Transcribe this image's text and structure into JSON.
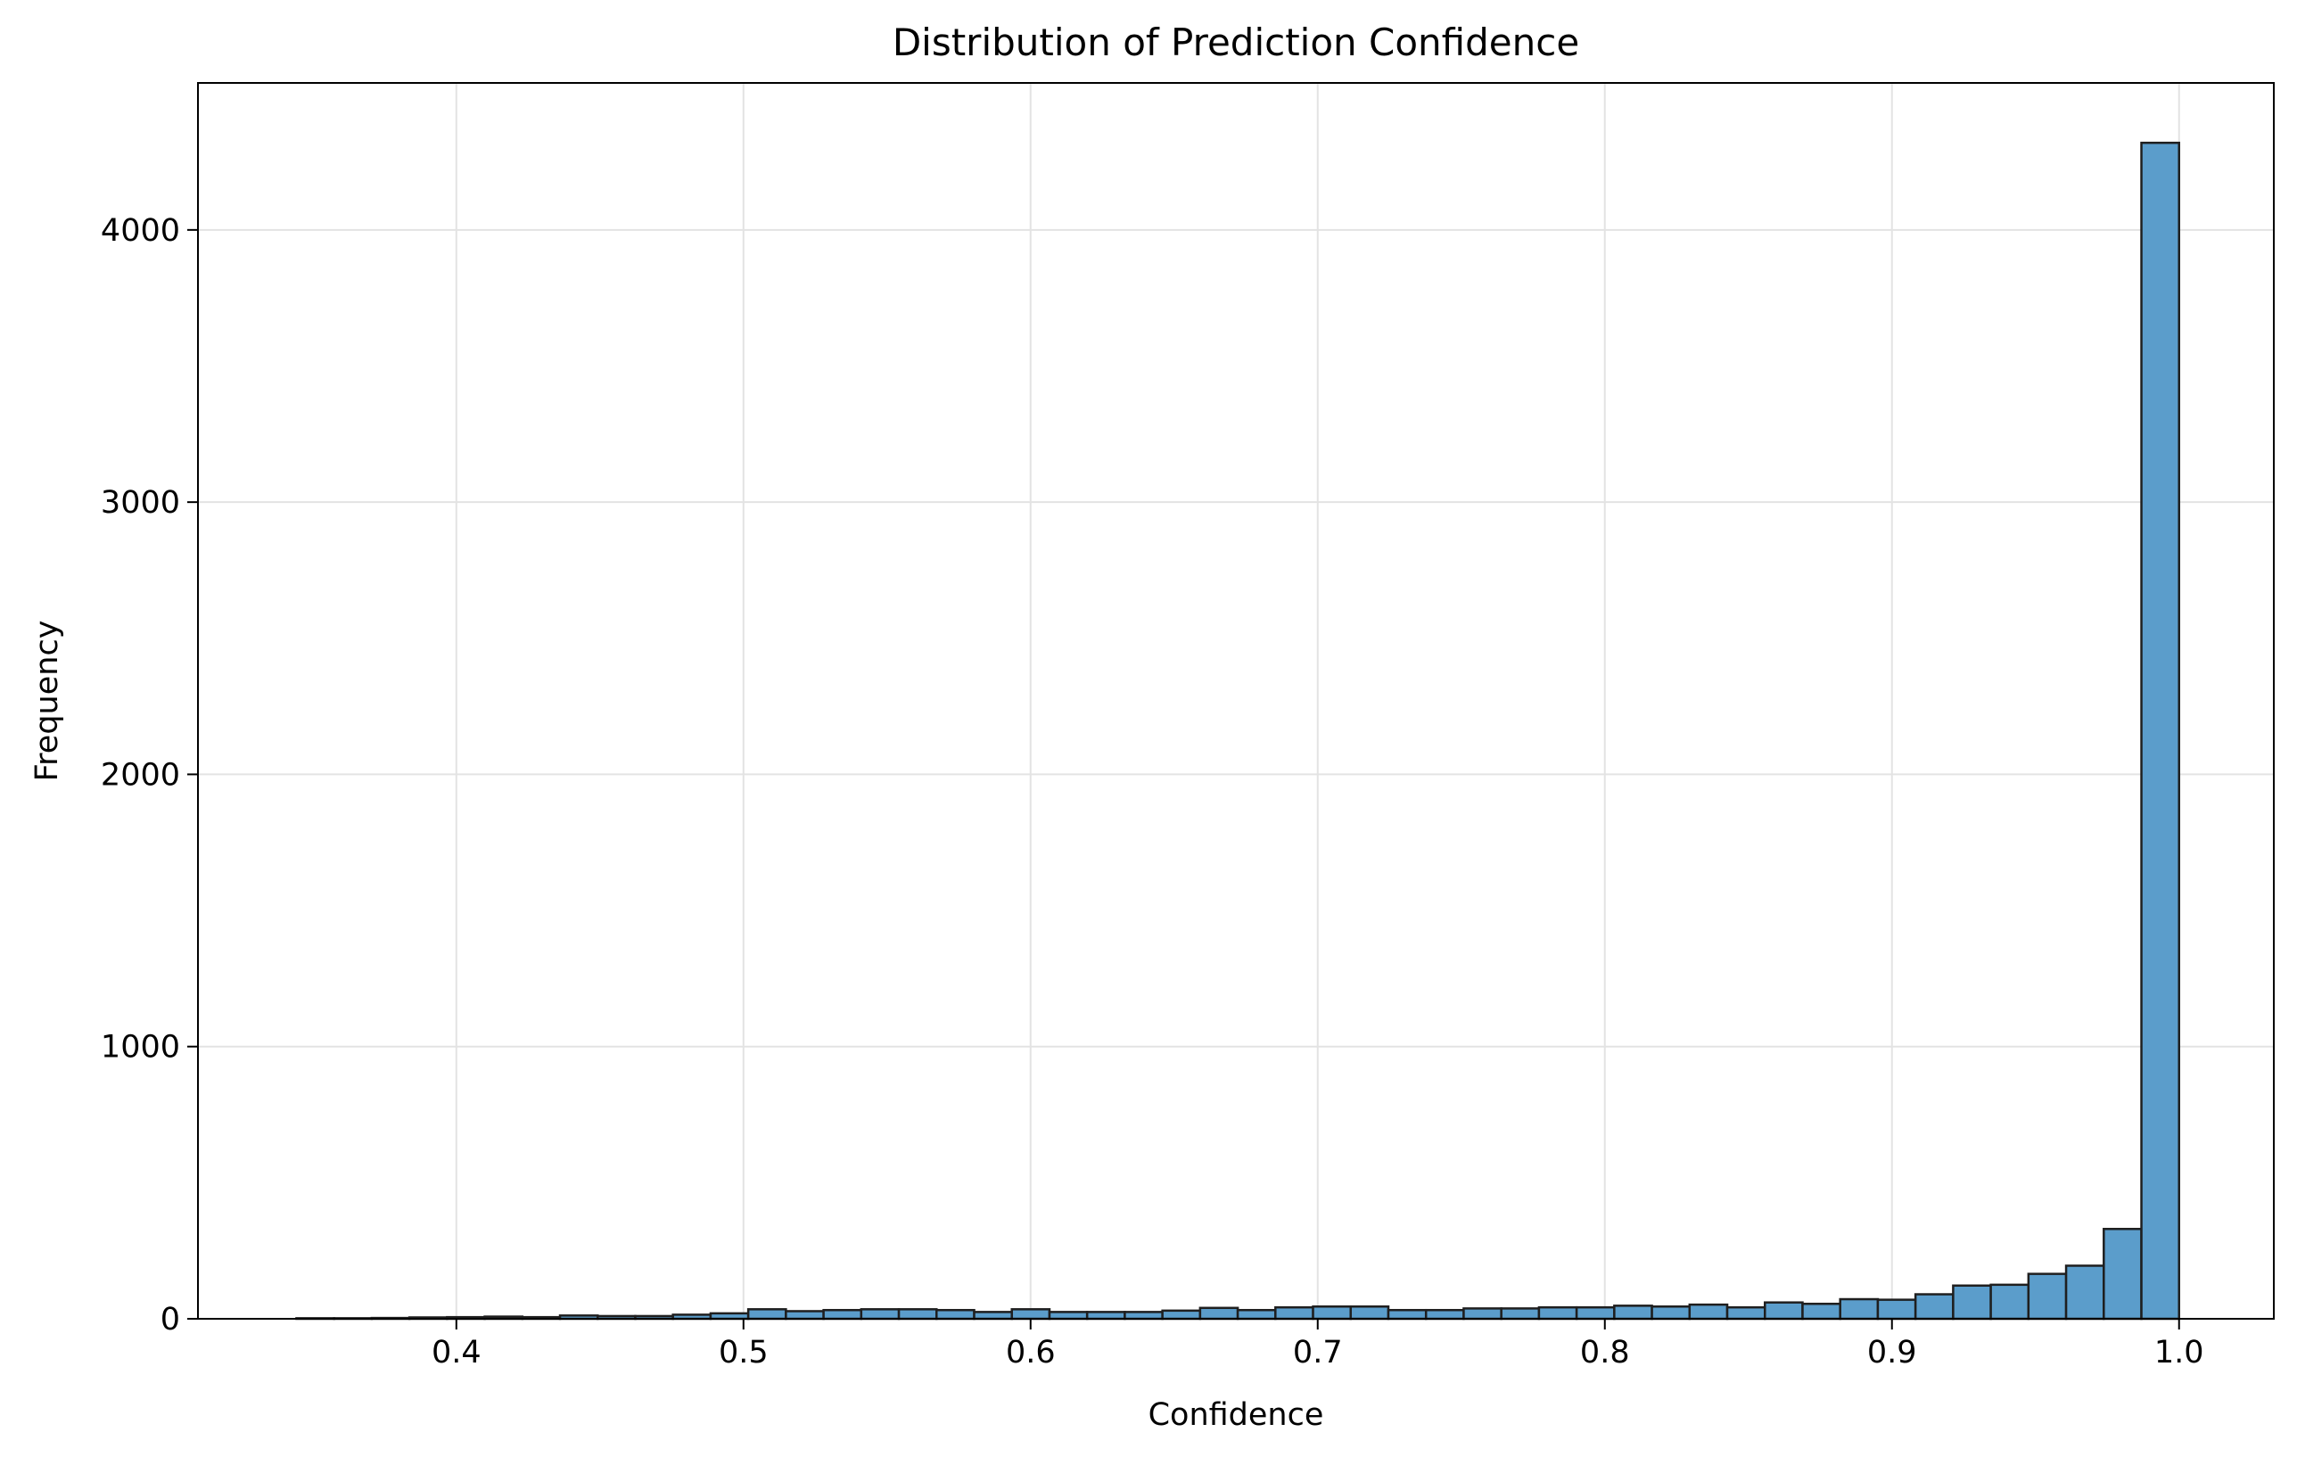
{
  "chart_data": {
    "type": "bar",
    "title": "Distribution of Prediction Confidence",
    "xlabel": "Confidence",
    "ylabel": "Frequency",
    "xlim": [
      0.31,
      1.033
    ],
    "ylim": [
      0,
      4540
    ],
    "xticks": [
      0.4,
      0.5,
      0.6,
      0.7,
      0.8,
      0.9,
      1.0
    ],
    "xtick_labels": [
      "0.4",
      "0.5",
      "0.6",
      "0.7",
      "0.8",
      "0.9",
      "1.0"
    ],
    "yticks": [
      0,
      1000,
      2000,
      3000,
      4000
    ],
    "ytick_labels": [
      "0",
      "1000",
      "2000",
      "3000",
      "4000"
    ],
    "grid": true,
    "bin_start": 0.3443,
    "bin_width": 0.013114,
    "values": [
      2,
      2,
      3,
      5,
      6,
      8,
      6,
      12,
      10,
      10,
      15,
      20,
      35,
      28,
      32,
      35,
      35,
      32,
      25,
      35,
      25,
      25,
      25,
      30,
      40,
      32,
      42,
      45,
      45,
      32,
      32,
      38,
      38,
      42,
      42,
      48,
      45,
      52,
      42,
      60,
      55,
      72,
      70,
      90,
      122,
      125,
      165,
      195,
      330,
      4320
    ],
    "bar_color": "#5b9dcb",
    "edge_color": "#1f1f1f"
  }
}
